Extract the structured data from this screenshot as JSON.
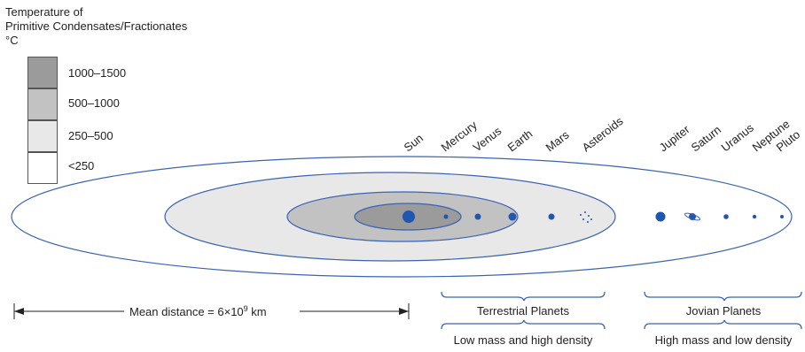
{
  "legend": {
    "title_line1": "Temperature of",
    "title_line2": "Primitive Condensates/Fractionates",
    "title_line3": "°C",
    "entries": [
      {
        "label": "1000–1500",
        "color": "#9b9b9b"
      },
      {
        "label": "500–1000",
        "color": "#c2c2c2"
      },
      {
        "label": "250–500",
        "color": "#e8e8e8"
      },
      {
        "label": "<250",
        "color": "#ffffff"
      }
    ]
  },
  "bodies": [
    {
      "name": "Sun"
    },
    {
      "name": "Mercury"
    },
    {
      "name": "Venus"
    },
    {
      "name": "Earth"
    },
    {
      "name": "Mars"
    },
    {
      "name": "Asteroids"
    },
    {
      "name": "Jupiter"
    },
    {
      "name": "Saturn"
    },
    {
      "name": "Uranus"
    },
    {
      "name": "Neptune"
    },
    {
      "name": "Pluto"
    }
  ],
  "distance": {
    "prefix": "Mean distance = 6×10",
    "exponent": "9",
    "suffix": " km"
  },
  "groups": {
    "terrestrial": {
      "label": "Terrestrial Planets",
      "property": "Low mass and high density"
    },
    "jovian": {
      "label": "Jovian Planets",
      "property": "High mass and low density"
    }
  },
  "colors": {
    "orbit_stroke": "#3a63b5",
    "planet_fill": "#1f56b0",
    "bracket": "#3a63b5"
  }
}
